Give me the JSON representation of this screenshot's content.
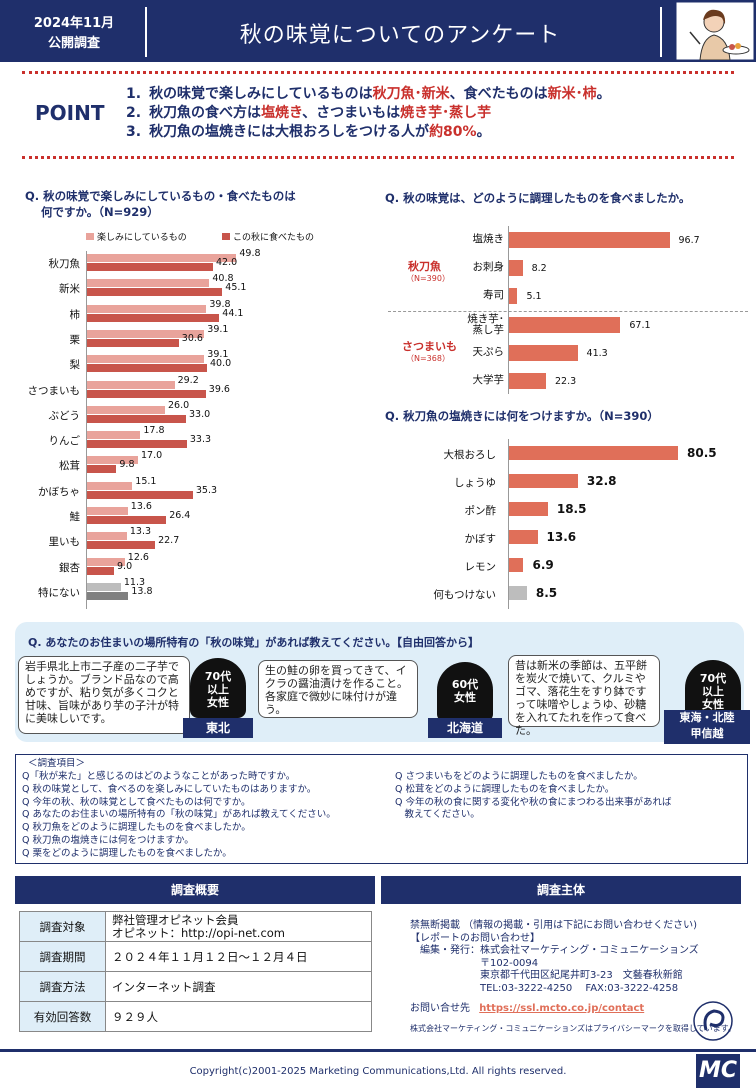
{
  "header": {
    "date_line1": "2024年11月",
    "date_line2": "公開調査",
    "title": "秋の味覚についてのアンケート"
  },
  "point": {
    "label": "POINT",
    "items": [
      {
        "num": "1.",
        "segments": [
          {
            "t": "秋の味覚で楽しみにしているものは",
            "hl": false
          },
          {
            "t": "秋刀魚･新米",
            "hl": true
          },
          {
            "t": "、食べたものは",
            "hl": false
          },
          {
            "t": "新米･柿",
            "hl": true
          },
          {
            "t": "。",
            "hl": false
          }
        ]
      },
      {
        "num": "2.",
        "segments": [
          {
            "t": "秋刀魚の食べ方は",
            "hl": false
          },
          {
            "t": "塩焼き",
            "hl": true
          },
          {
            "t": "、さつまいもは",
            "hl": false
          },
          {
            "t": "焼き芋･蒸し芋",
            "hl": true
          }
        ]
      },
      {
        "num": "3.",
        "segments": [
          {
            "t": "秋刀魚の塩焼きには大根おろしをつける人が",
            "hl": false
          },
          {
            "t": "約80%",
            "hl": true
          },
          {
            "t": "。",
            "hl": false
          }
        ]
      }
    ]
  },
  "q1": {
    "title_line1": "Q. 秋の味覚で楽しみにしているもの・食べたものは",
    "title_line2": "何ですか。（N=929）",
    "legend": [
      "楽しみにしているもの",
      "この秋に食べたもの"
    ],
    "colors": {
      "looking": "#e9a39b",
      "ate": "#c8554b",
      "none_looking": "#bdbdbd",
      "none_ate": "#808080"
    }
  },
  "q2": {
    "title": "Q. 秋の味覚は、どのように調理したものを食べましたか。",
    "groups": [
      {
        "name": "秋刀魚",
        "n": "（N=390）"
      },
      {
        "name": "さつまいも",
        "n": "（N=368）"
      }
    ],
    "color": "#e06f59"
  },
  "q3": {
    "title": "Q. 秋刀魚の塩焼きには何をつけますか。（N=390）",
    "color": "#e06f59",
    "none_color": "#bdbdbd"
  },
  "chart_data": [
    {
      "type": "bar",
      "orientation": "horizontal",
      "title": "Q. 秋の味覚で楽しみにしているもの・食べたものは何ですか。（N=929）",
      "categories": [
        "秋刀魚",
        "新米",
        "柿",
        "栗",
        "梨",
        "さつまいも",
        "ぶどう",
        "りんご",
        "松茸",
        "かぼちゃ",
        "鮭",
        "里いも",
        "銀杏",
        "特にない"
      ],
      "series": [
        {
          "name": "楽しみにしているもの",
          "values": [
            49.8,
            40.8,
            39.8,
            39.1,
            39.1,
            29.2,
            26.0,
            17.8,
            17.0,
            15.1,
            13.6,
            13.3,
            12.6,
            11.3
          ]
        },
        {
          "name": "この秋に食べたもの",
          "values": [
            42.0,
            45.1,
            44.1,
            30.6,
            40.0,
            39.6,
            33.0,
            33.3,
            9.8,
            35.3,
            26.4,
            22.7,
            9.0,
            13.8
          ]
        }
      ],
      "labels": [
        "49.8",
        "42.0",
        "40.8",
        "45.1",
        "39.8",
        "44.1",
        "39.1",
        "30.6",
        "39.1",
        "40.0",
        "29.2",
        "39.6",
        "26.0",
        "33.0",
        "17.8",
        "33.3",
        "17.0",
        "9.8",
        "15.1",
        "35.3",
        "13.6",
        "26.4",
        "13.3",
        "22.7",
        "12.6",
        "9.0",
        "11.3",
        "13.8"
      ]
    },
    {
      "type": "bar",
      "orientation": "horizontal",
      "title": "Q. 秋の味覚は、どのように調理したものを食べましたか。",
      "categories": [
        "塩焼き",
        "お刺身",
        "寿司",
        "焼き芋･蒸し芋",
        "天ぷら",
        "大学芋"
      ],
      "values": [
        96.7,
        8.2,
        5.1,
        67.1,
        41.3,
        22.3
      ],
      "labels": [
        "96.7",
        "8.2",
        "5.1",
        "67.1",
        "41.3",
        "22.3"
      ],
      "cat_line1": [
        "塩焼き",
        "お刺身",
        "寿司",
        "焼き芋･",
        "天ぷら",
        "大学芋"
      ],
      "cat_line2": [
        "",
        "",
        "",
        "蒸し芋",
        "",
        ""
      ]
    },
    {
      "type": "bar",
      "orientation": "horizontal",
      "title": "Q. 秋刀魚の塩焼きには何をつけますか。（N=390）",
      "categories": [
        "大根おろし",
        "しょうゆ",
        "ポン酢",
        "かぼす",
        "レモン",
        "何もつけない"
      ],
      "values": [
        80.5,
        32.8,
        18.5,
        13.6,
        6.9,
        8.5
      ],
      "labels": [
        "80.5",
        "32.8",
        "18.5",
        "13.6",
        "6.9",
        "8.5"
      ]
    }
  ],
  "regional": {
    "title": "Q. あなたのお住まいの場所特有の「秋の味覚」があれば教えてください。【自由回答から】",
    "answers": [
      {
        "text": "岩手県北上市二子産の二子芋でしょうか。ブランド品なので高めですが、粘り気が多くコクと甘味、旨味があり芋の子汁が特に美味しいです。",
        "person_line1": "70代",
        "person_line2": "以上",
        "person_line3": "女性",
        "region": "東北"
      },
      {
        "text": "生の鮭の卵を買ってきて、イクラの醤油漬けを作ること。各家庭で微妙に味付けが違う。",
        "person_line1": "60代",
        "person_line2": "女性",
        "person_line3": "",
        "region": "北海道"
      },
      {
        "text": "昔は新米の季節は、五平餅を炭火で焼いて、クルミやゴマ、落花生をすり鉢ですって味噌やしょうゆ、砂糖を入れてたれを作って食べた。",
        "person_line1": "70代",
        "person_line2": "以上",
        "person_line3": "女性",
        "region_line1": "東海・北陸",
        "region_line2": "甲信越"
      }
    ]
  },
  "survey_items": {
    "header": "＜調査項目＞",
    "left": [
      "Q「秋が来た」と感じるのはどのようなことがあった時ですか。",
      "Q 秋の味覚として、食べるのを楽しみにしていたものはありますか。",
      "Q 今年の秋、秋の味覚として食べたものは何ですか。",
      "Q あなたのお住まいの場所特有の「秋の味覚」があれば教えてください。",
      "Q 秋刀魚をどのように調理したものを食べましたか。",
      "Q 秋刀魚の塩焼きには何をつけますか。",
      "Q 栗をどのように調理したものを食べましたか。"
    ],
    "right": [
      "Q さつまいもをどのように調理したものを食べましたか。",
      "Q 松茸をどのように調理したものを食べましたか。",
      "Q 今年の秋の食に関する変化や秋の食にまつわる出来事があれば",
      "　教えてください。"
    ]
  },
  "overview": {
    "header": "調査概要",
    "rows": [
      {
        "key": "調査対象",
        "value1": "弊社管理オピネット会員",
        "value2": "オピネット：http://opi-net.com"
      },
      {
        "key": "調査期間",
        "value1": "２０２４年１１月１２日～１２月４日",
        "value2": ""
      },
      {
        "key": "調査方法",
        "value1": "インターネット調査",
        "value2": ""
      },
      {
        "key": "有効回答数",
        "value1": "９２９人",
        "value2": ""
      }
    ]
  },
  "publisher": {
    "header": "調査主体",
    "lines": [
      "禁無断掲載 （情報の掲載・引用は下記にお問い合わせください)",
      "【レポートのお問い合わせ】",
      "　編集・発行：株式会社マーケティング・コミュニケーションズ",
      "　　　　　　　〒102-0094",
      "　　　　　　　東京都千代田区紀尾井町3-23　文藝春秋新館",
      "　　　　　　　TEL:03-3222-4250　 FAX:03-3222-4258"
    ],
    "contact_label": "お問い合せ先",
    "contact_url": "https://ssl.mcto.co.jp/contact",
    "privacy": "株式会社マーケティング・コミュニケーションズはプライバシーマークを取得しています。",
    "logo_text": "MC"
  },
  "footer": {
    "copyright": "Copyright(c)2001-2025 Marketing Communications,Ltd. All rights reserved."
  }
}
